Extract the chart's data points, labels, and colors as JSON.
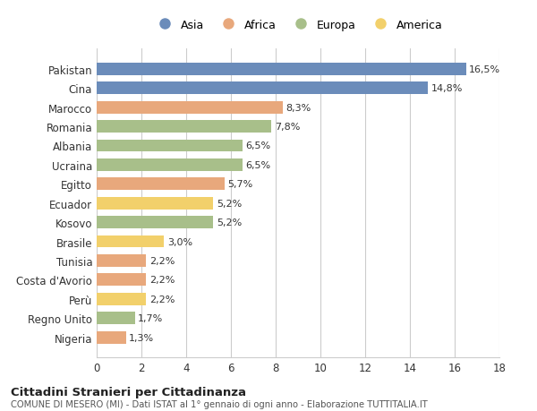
{
  "countries": [
    "Pakistan",
    "Cina",
    "Marocco",
    "Romania",
    "Albania",
    "Ucraina",
    "Egitto",
    "Ecuador",
    "Kosovo",
    "Brasile",
    "Tunisia",
    "Costa d'Avorio",
    "Perù",
    "Regno Unito",
    "Nigeria"
  ],
  "values": [
    16.5,
    14.8,
    8.3,
    7.8,
    6.5,
    6.5,
    5.7,
    5.2,
    5.2,
    3.0,
    2.2,
    2.2,
    2.2,
    1.7,
    1.3
  ],
  "labels": [
    "16,5%",
    "14,8%",
    "8,3%",
    "7,8%",
    "6,5%",
    "6,5%",
    "5,7%",
    "5,2%",
    "5,2%",
    "3,0%",
    "2,2%",
    "2,2%",
    "2,2%",
    "1,7%",
    "1,3%"
  ],
  "continents": [
    "Asia",
    "Asia",
    "Africa",
    "Europa",
    "Europa",
    "Europa",
    "Africa",
    "America",
    "Europa",
    "America",
    "Africa",
    "Africa",
    "America",
    "Europa",
    "Africa"
  ],
  "colors": {
    "Asia": "#6b8cba",
    "Africa": "#e8a87c",
    "Europa": "#a8bf8a",
    "America": "#f2d06b"
  },
  "legend_order": [
    "Asia",
    "Africa",
    "Europa",
    "America"
  ],
  "xlim": [
    0,
    18
  ],
  "xticks": [
    0,
    2,
    4,
    6,
    8,
    10,
    12,
    14,
    16,
    18
  ],
  "title": "Cittadini Stranieri per Cittadinanza",
  "subtitle": "COMUNE DI MESERO (MI) - Dati ISTAT al 1° gennaio di ogni anno - Elaborazione TUTTITALIA.IT",
  "bg_color": "#ffffff",
  "grid_color": "#cccccc",
  "bar_height": 0.65
}
